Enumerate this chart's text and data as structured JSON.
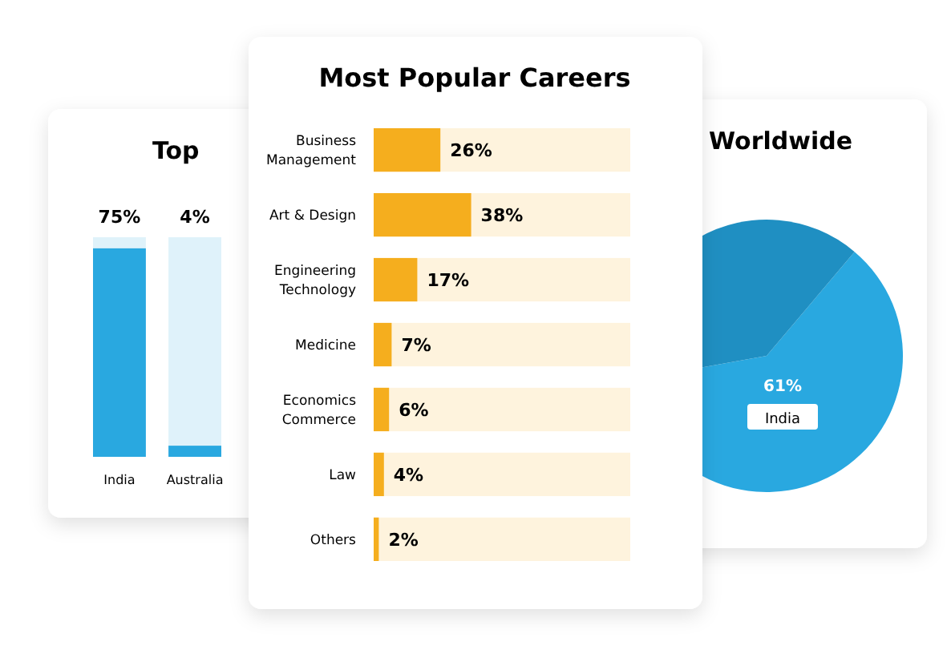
{
  "chart_data": [
    {
      "type": "bar",
      "title": "Top",
      "categories": [
        "India",
        "Australia"
      ],
      "values": [
        75,
        4
      ],
      "color": "#29a8e0",
      "value_labels": [
        "75%",
        "4%"
      ]
    },
    {
      "type": "bar",
      "title": "Most Popular Careers",
      "orientation": "horizontal",
      "categories": [
        "Business Management",
        "Art & Design",
        "Engineering Technology",
        "Medicine",
        "Economics Commerce",
        "Law",
        "Others"
      ],
      "values": [
        26,
        38,
        17,
        7,
        6,
        4,
        2
      ],
      "color": "#f5ae1e",
      "value_labels": [
        "26%",
        "38%",
        "17%",
        "7%",
        "6%",
        "4%",
        "2%"
      ]
    },
    {
      "type": "pie",
      "title": "Worldwide",
      "categories": [
        "India",
        null
      ],
      "values": [
        61,
        39
      ],
      "colors": [
        "#29a8e0",
        "#1f8fc2"
      ],
      "value_labels": [
        "61%",
        null
      ]
    }
  ]
}
